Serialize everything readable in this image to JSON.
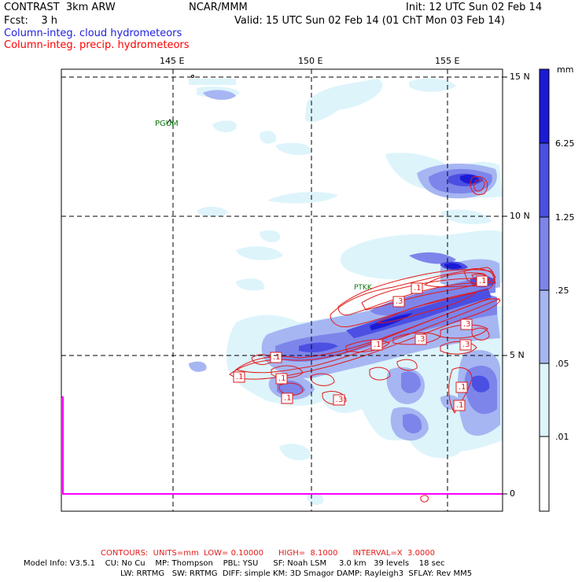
{
  "header": {
    "model": "CONTRAST  3km ARW",
    "org": "NCAR/MMM",
    "init": "Init: 12 UTC Sun 02 Feb 14",
    "fcst": "Fcst:    3 h",
    "valid": "Valid: 15 UTC Sun 02 Feb 14 (01 ChT Mon 03 Feb 14)",
    "field_cloud": "Column-integ. cloud hydrometeors",
    "field_precip": "Column-integ. precip. hydrometeors"
  },
  "colors": {
    "cloud_label": "#1f1fdf",
    "precip_label": "#ff0000",
    "contour": "#e21a1a",
    "shade_1": "#ddf4fb",
    "shade_2": "#a6b6f2",
    "shade_3": "#7d85ea",
    "shade_4": "#4b4fe2",
    "shade_5": "#1b1bd6",
    "station": "#117711",
    "boundary": "#ff00ff"
  },
  "map": {
    "lon_labels": [
      "145 E",
      "150 E",
      "155 E"
    ],
    "lat_labels": [
      "15 N",
      "10 N",
      "5 N",
      "0"
    ],
    "stations": [
      "PGUM",
      "PTKK"
    ]
  },
  "colorbar": {
    "unit": "mm",
    "labels": [
      "6.25",
      "1.25",
      ".25",
      ".05",
      ".01"
    ]
  },
  "contour_labels": [
    ".1",
    ".3",
    ".1",
    ".3",
    ".3",
    ".1",
    ".3",
    ".1",
    ".1",
    ".1",
    ".1",
    ".3",
    ".1",
    ".1"
  ],
  "footer": {
    "contours": "CONTOURS:  UNITS=mm  LOW= 0.10000      HIGH=  8.1000      INTERVAL=X  3.0000",
    "model_info_1": "Model Info: V3.5.1    CU: No Cu    MP: Thompson    PBL: YSU      SF: Noah LSM     3.0 km   39 levels    18 sec",
    "model_info_2": "LW: RRTMG   SW: RRTMG  DIFF: simple KM: 3D Smagor DAMP: Rayleigh3  SFLAY: Rev MM5"
  }
}
